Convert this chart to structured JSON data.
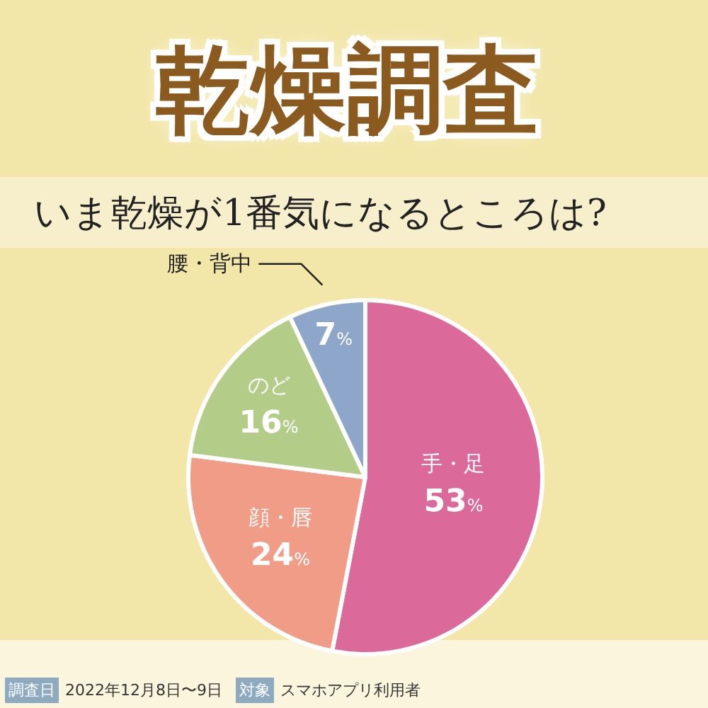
{
  "chart_data": {
    "type": "pie",
    "title": "乾燥調査",
    "subtitle": "いま乾燥が1番気になるところは?",
    "categories": [
      "手・足",
      "顔・唇",
      "のど",
      "腰・背中"
    ],
    "values": [
      53,
      24,
      16,
      7
    ],
    "colors": [
      "#db6a9a",
      "#f09c86",
      "#b3cd89",
      "#8ea6c9"
    ],
    "value_labels": [
      "53%",
      "24%",
      "16%",
      "7%"
    ],
    "annotations": [
      "調査日",
      "2022年12月8日〜9日",
      "対象",
      "スマホアプリ利用者"
    ]
  }
}
